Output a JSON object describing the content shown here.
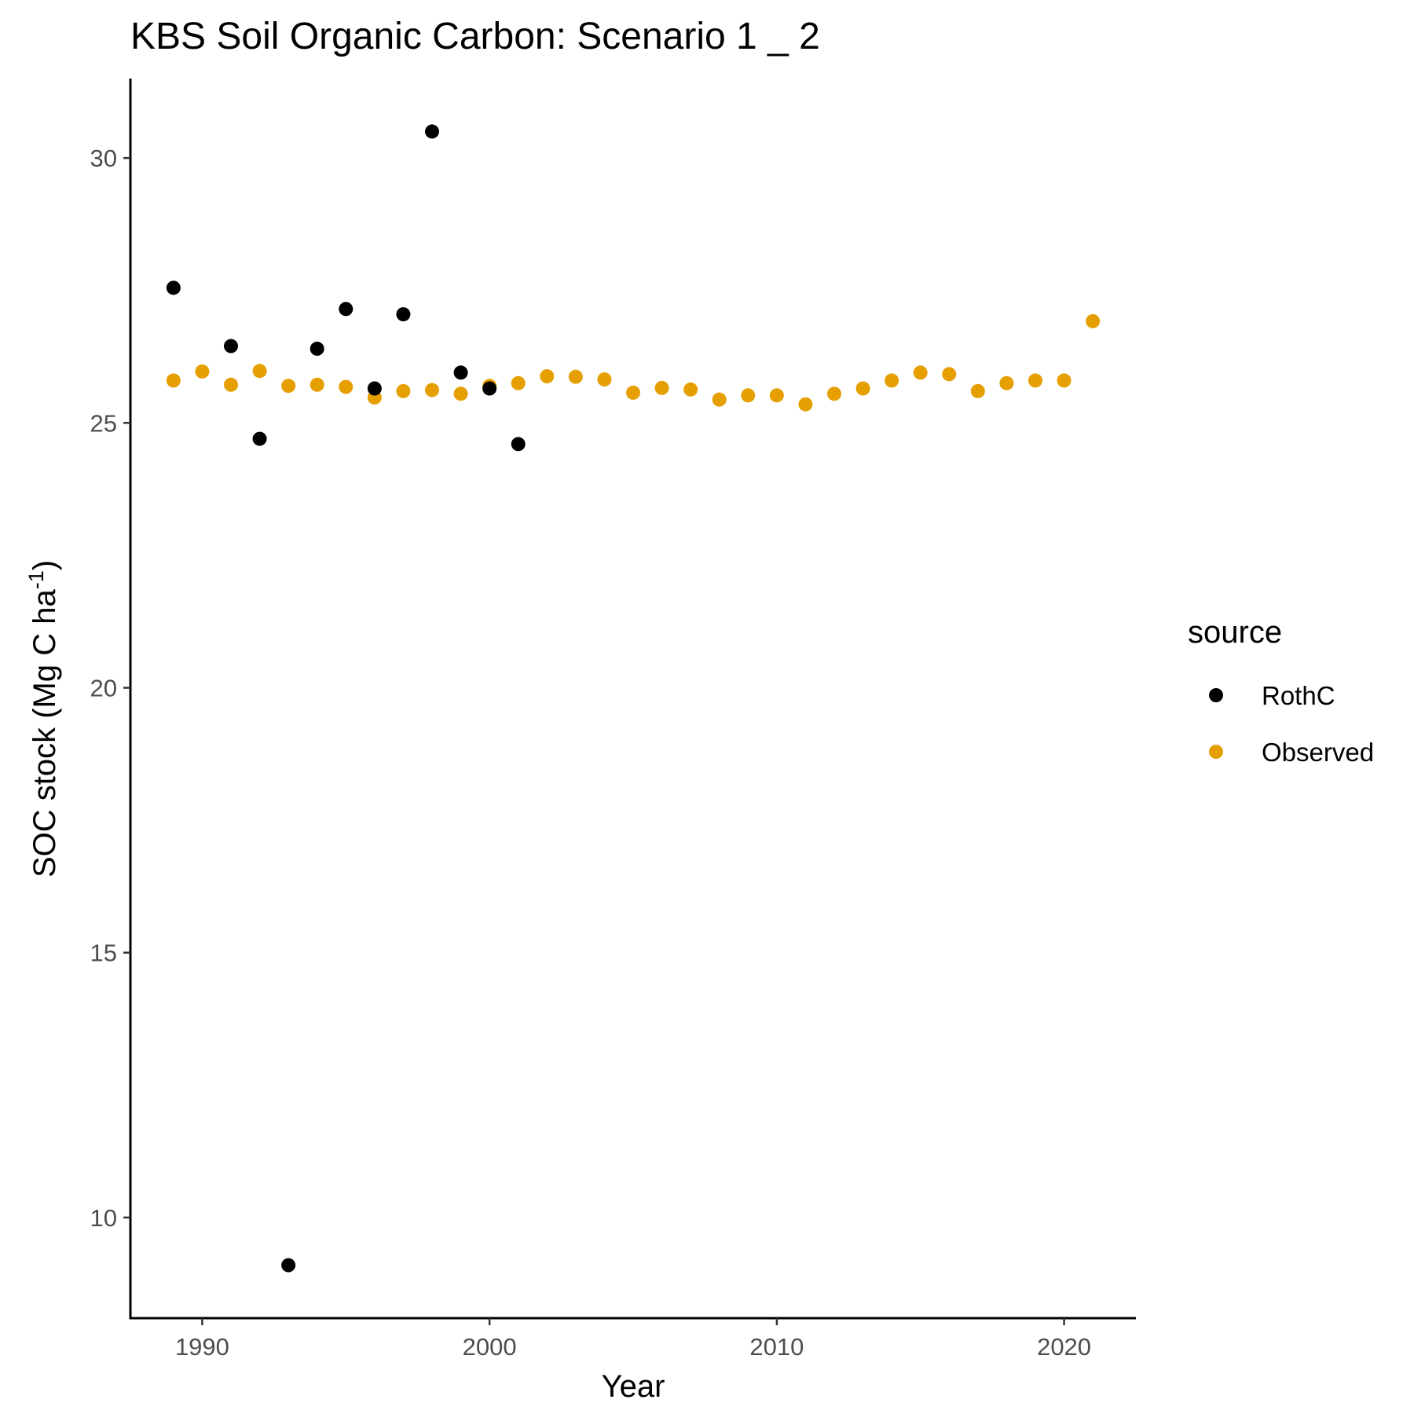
{
  "chart_data": {
    "type": "scatter",
    "title": "KBS Soil Organic Carbon: Scenario  1 _ 2",
    "xlabel": "Year",
    "ylabel_main": "SOC stock (Mg C ha",
    "ylabel_sup": "-1",
    "ylabel_close": ")",
    "xlim": [
      1987.5,
      2022.5
    ],
    "ylim": [
      8.1,
      31.5
    ],
    "xticks": [
      1990,
      2000,
      2010,
      2020
    ],
    "yticks": [
      10,
      15,
      20,
      25,
      30
    ],
    "xtick_labels": [
      "1990",
      "2000",
      "2010",
      "2020"
    ],
    "ytick_labels": [
      "10",
      "15",
      "20",
      "25",
      "30"
    ],
    "grid": false,
    "legend": {
      "title": "source",
      "position": "right",
      "entries": [
        "RothC",
        "Observed"
      ]
    },
    "series": [
      {
        "name": "RothC",
        "color": "#000000",
        "x": [
          1989,
          1991,
          1992,
          1993,
          1994,
          1995,
          1996,
          1997,
          1998,
          1999,
          2000,
          2001
        ],
        "y": [
          27.55,
          26.45,
          24.7,
          9.1,
          26.4,
          27.15,
          25.65,
          27.05,
          30.5,
          25.95,
          25.65,
          24.6
        ]
      },
      {
        "name": "Observed",
        "color": "#E69F00",
        "x": [
          1989,
          1990,
          1991,
          1992,
          1993,
          1994,
          1995,
          1996,
          1997,
          1998,
          1999,
          2000,
          2001,
          2002,
          2003,
          2004,
          2005,
          2006,
          2007,
          2008,
          2009,
          2010,
          2011,
          2012,
          2013,
          2014,
          2015,
          2016,
          2017,
          2018,
          2019,
          2020,
          2021
        ],
        "y": [
          25.8,
          25.97,
          25.72,
          25.98,
          25.7,
          25.72,
          25.68,
          25.48,
          25.6,
          25.62,
          25.55,
          25.7,
          25.75,
          25.88,
          25.87,
          25.82,
          25.57,
          25.66,
          25.63,
          25.44,
          25.52,
          25.52,
          25.35,
          25.55,
          25.65,
          25.8,
          25.95,
          25.92,
          25.6,
          25.75,
          25.8,
          25.8,
          26.92
        ]
      }
    ]
  }
}
